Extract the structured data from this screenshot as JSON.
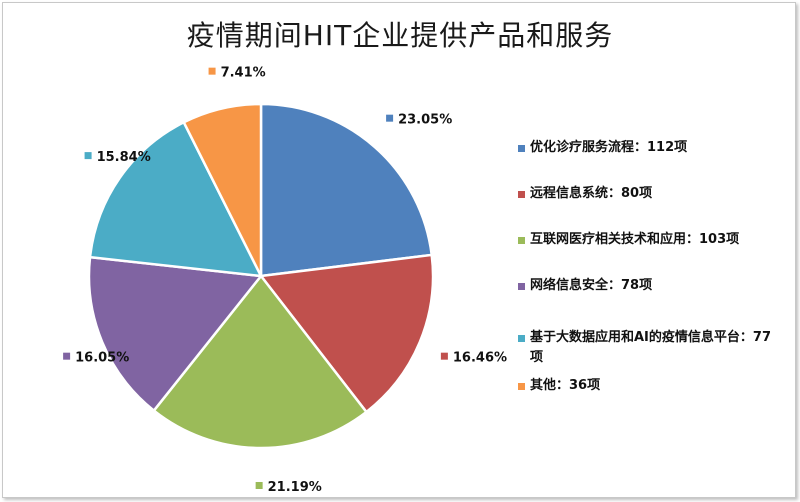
{
  "title": "疫情期间HIT企业提供产品和服务",
  "chart_data": {
    "type": "pie",
    "title": "疫情期间HIT企业提供产品和服务",
    "legend_position": "right",
    "slices": [
      {
        "label": "优化诊疗服务流程：112项",
        "value": 112,
        "percent_label": "23.05%",
        "color": "#4f81bd"
      },
      {
        "label": "远程信息系统：80项",
        "value": 80,
        "percent_label": "16.46%",
        "color": "#c0504d"
      },
      {
        "label": "互联网医疗相关技术和应用：103项",
        "value": 103,
        "percent_label": "21.19%",
        "color": "#9bbb59"
      },
      {
        "label": "网络信息安全：78项",
        "value": 78,
        "percent_label": "16.05%",
        "color": "#8064a2"
      },
      {
        "label": "基于大数据应用和AI的疫情信息平台：77项",
        "value": 77,
        "percent_label": "15.84%",
        "color": "#4bacc6"
      },
      {
        "label": "其他：36项",
        "value": 36,
        "percent_label": "7.41%",
        "color": "#f79646"
      }
    ]
  }
}
